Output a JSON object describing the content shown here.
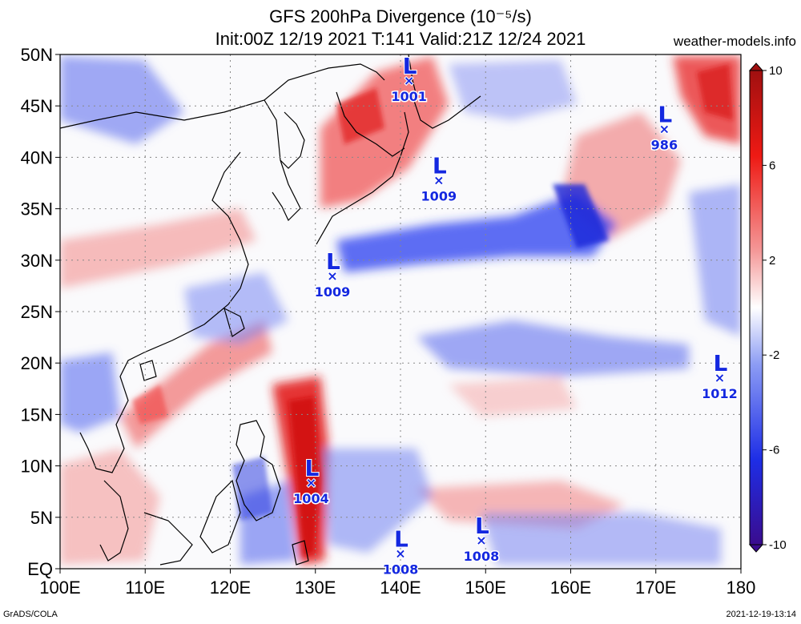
{
  "header": {
    "title_line1": "GFS 200hPa Divergence (10⁻⁵/s)",
    "title_line2": "Init:00Z 12/19 2021 T:141 Valid:21Z 12/24 2021",
    "site": "weather-models.info"
  },
  "map": {
    "lon_range": [
      100,
      180
    ],
    "lat_range": [
      0,
      50
    ],
    "y_ticks": [
      {
        "lat": 50,
        "label": "50N"
      },
      {
        "lat": 45,
        "label": "45N"
      },
      {
        "lat": 40,
        "label": "40N"
      },
      {
        "lat": 35,
        "label": "35N"
      },
      {
        "lat": 30,
        "label": "30N"
      },
      {
        "lat": 25,
        "label": "25N"
      },
      {
        "lat": 20,
        "label": "20N"
      },
      {
        "lat": 15,
        "label": "15N"
      },
      {
        "lat": 10,
        "label": "10N"
      },
      {
        "lat": 5,
        "label": "5N"
      },
      {
        "lat": 0,
        "label": "EQ"
      }
    ],
    "x_ticks": [
      {
        "lon": 100,
        "label": "100E"
      },
      {
        "lon": 110,
        "label": "110E"
      },
      {
        "lon": 120,
        "label": "120E"
      },
      {
        "lon": 130,
        "label": "130E"
      },
      {
        "lon": 140,
        "label": "140E"
      },
      {
        "lon": 150,
        "label": "150E"
      },
      {
        "lon": 160,
        "label": "160E"
      },
      {
        "lon": 170,
        "label": "170E"
      },
      {
        "lon": 180,
        "label": "180"
      }
    ],
    "lows": [
      {
        "lon": 141.0,
        "lat": 47.5,
        "pressure": "1001"
      },
      {
        "lon": 144.5,
        "lat": 37.8,
        "pressure": "1009"
      },
      {
        "lon": 171.0,
        "lat": 42.8,
        "pressure": "986"
      },
      {
        "lon": 132.0,
        "lat": 28.5,
        "pressure": "1009"
      },
      {
        "lon": 177.5,
        "lat": 18.6,
        "pressure": "1012"
      },
      {
        "lon": 129.5,
        "lat": 8.4,
        "pressure": "1004"
      },
      {
        "lon": 140.0,
        "lat": 1.5,
        "pressure": "1008"
      },
      {
        "lon": 149.5,
        "lat": 2.8,
        "pressure": "1008"
      }
    ],
    "colors": {
      "positive": "#e8201e",
      "negative": "#1e32e6",
      "neutral": "#fdfdfd",
      "grid": "#888888"
    }
  },
  "colorbar": {
    "ticks": [
      {
        "value": 10,
        "label": "10"
      },
      {
        "value": 6,
        "label": "6"
      },
      {
        "value": 2,
        "label": "2"
      },
      {
        "value": -2,
        "label": "-2"
      },
      {
        "value": -6,
        "label": "-6"
      },
      {
        "value": -10,
        "label": "-10"
      }
    ],
    "colors": [
      "#3a0c8e",
      "#1e2ee6",
      "#8c9cf4",
      "#ffffff",
      "#f49898",
      "#ee1a14",
      "#a01010"
    ]
  },
  "footer": {
    "left": "GrADS/COLA",
    "right": "2021-12-19-13:14"
  }
}
